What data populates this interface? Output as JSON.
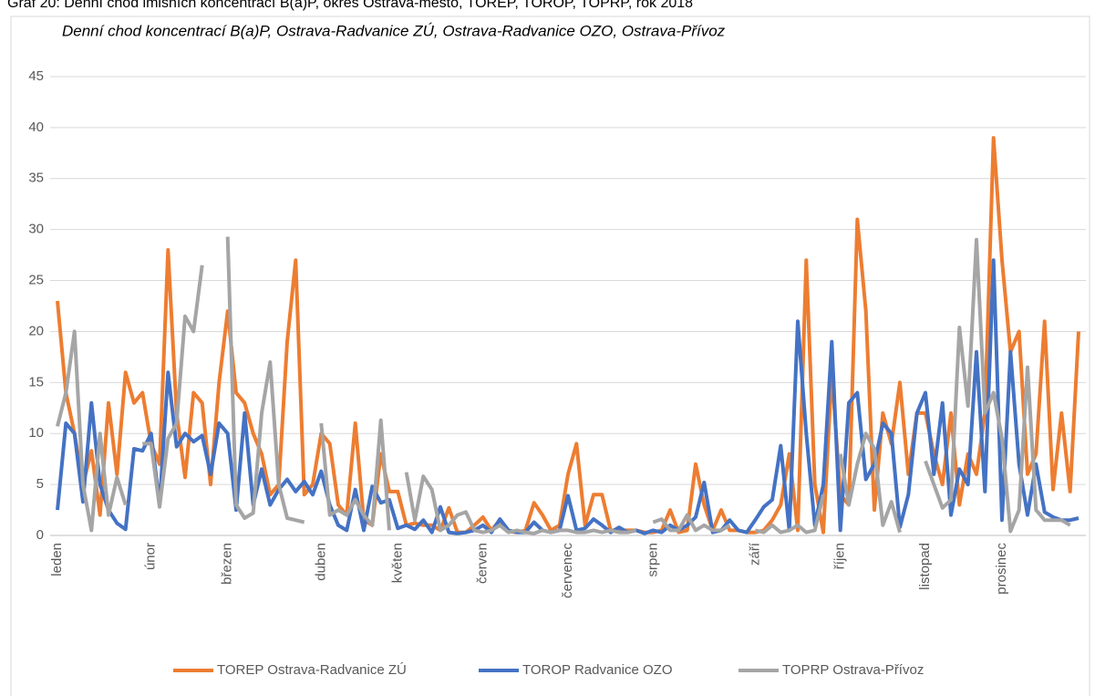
{
  "page_title": "Graf 20: Denní chod imisních koncentrací B(a)P, okres Ostrava-město, TOREP, TOROP, TOPRP, rok 2018",
  "chart_data": {
    "type": "line",
    "title": "Denní chod koncentrací B(a)P, Ostrava-Radvanice ZÚ, Ostrava-Radvanice OZO, Ostrava-Přívoz",
    "categories": [
      "leden",
      null,
      null,
      null,
      null,
      null,
      null,
      null,
      null,
      null,
      null,
      "únor",
      null,
      null,
      null,
      null,
      null,
      null,
      null,
      null,
      "březen",
      null,
      null,
      null,
      null,
      null,
      null,
      null,
      null,
      null,
      null,
      "duben",
      null,
      null,
      null,
      null,
      null,
      null,
      null,
      null,
      "květen",
      null,
      null,
      null,
      null,
      null,
      null,
      null,
      null,
      null,
      "červen",
      null,
      null,
      null,
      null,
      null,
      null,
      null,
      null,
      null,
      "červenec",
      null,
      null,
      null,
      null,
      null,
      null,
      null,
      null,
      null,
      "srpen",
      null,
      null,
      null,
      null,
      null,
      null,
      null,
      null,
      null,
      null,
      null,
      "září",
      null,
      null,
      null,
      null,
      null,
      null,
      null,
      null,
      null,
      "říjen",
      null,
      null,
      null,
      null,
      null,
      null,
      null,
      null,
      null,
      "listopad",
      null,
      null,
      null,
      null,
      null,
      null,
      null,
      null,
      "prosinec",
      null,
      null,
      null,
      null,
      null,
      null,
      null,
      null,
      null
    ],
    "ylim": [
      0,
      45
    ],
    "yticks": [
      0,
      5,
      10,
      15,
      20,
      25,
      30,
      35,
      40,
      45
    ],
    "grid": true,
    "legend": "bottom",
    "series": [
      {
        "name": "TOREP Ostrava-Radvanice ZÚ",
        "color": "#ed7d31",
        "values": [
          23,
          14,
          10,
          5,
          8.3,
          2,
          13,
          6,
          16,
          13,
          14,
          9,
          7,
          28,
          12,
          5.7,
          14,
          13,
          5,
          15,
          22,
          14,
          13,
          10,
          8,
          4,
          5,
          19,
          27,
          4,
          5,
          10,
          9,
          3,
          2,
          11,
          1.5,
          1,
          8,
          4.3,
          4.3,
          1,
          1.2,
          1,
          1,
          0.5,
          2.7,
          0.3,
          0.3,
          1,
          1.8,
          0.5,
          1.5,
          0.4,
          0.3,
          0.5,
          3.2,
          2,
          0.5,
          1,
          6,
          9,
          1,
          4,
          4,
          0.5,
          0.5,
          0.5,
          0.5,
          0.3,
          0.3,
          0.5,
          2.5,
          0.3,
          0.5,
          7,
          3,
          0.5,
          2.5,
          0.5,
          0.5,
          0.3,
          0.3,
          0.5,
          1.5,
          3,
          8,
          0.5,
          27,
          5,
          0.3,
          16,
          4,
          3,
          31,
          22,
          2.5,
          12,
          9,
          15,
          6,
          12,
          12,
          8,
          5,
          12,
          3,
          8,
          6,
          12,
          39,
          27,
          18,
          20,
          6,
          8,
          21,
          4.5,
          12,
          4.3,
          20
        ]
      },
      {
        "name": "TOROP Radvanice OZO",
        "color": "#4472c4",
        "values": [
          2.5,
          11,
          10,
          3.3,
          13,
          5,
          2.5,
          1.2,
          0.6,
          8.5,
          8.3,
          10,
          3,
          16,
          8.7,
          10,
          9.2,
          9.8,
          6,
          11,
          10,
          2.5,
          12,
          3,
          6.5,
          3,
          4.5,
          5.5,
          4.3,
          5.3,
          4,
          6.3,
          3,
          1,
          0.5,
          4.5,
          0.5,
          4.8,
          3.2,
          3.5,
          0.7,
          1,
          0.6,
          1.5,
          0.3,
          2.8,
          0.3,
          0.2,
          0.3,
          0.5,
          1,
          0.3,
          1.6,
          0.5,
          0.3,
          0.3,
          1.3,
          0.5,
          0.3,
          0.5,
          3.9,
          0.5,
          0.7,
          1.6,
          1,
          0.3,
          0.8,
          0.3,
          0.5,
          0.2,
          0.5,
          0.3,
          1,
          0.5,
          1,
          1.8,
          5.2,
          0.3,
          0.5,
          1.5,
          0.5,
          0.3,
          1.5,
          2.8,
          3.5,
          8.8,
          0.5,
          21,
          10,
          1,
          5,
          19,
          0.5,
          13,
          14,
          5.5,
          7,
          11,
          10,
          0.8,
          4,
          12,
          14,
          6,
          13,
          2,
          6.5,
          5,
          18,
          4.3,
          27,
          1.5,
          18,
          7,
          2,
          7,
          2.3,
          1.8,
          1.5,
          1.5,
          1.7
        ]
      },
      {
        "name": "TOPRP Ostrava-Přívoz",
        "color": "#a5a5a5",
        "values": [
          10.7,
          14,
          20,
          5,
          0.5,
          10,
          2,
          5.7,
          3,
          null,
          9,
          9,
          2.8,
          9.5,
          11,
          21.5,
          20,
          26.5,
          null,
          null,
          29.3,
          3,
          1.7,
          2.2,
          12,
          17,
          5,
          1.7,
          1.5,
          1.3,
          null,
          11,
          2,
          2.5,
          2,
          3.5,
          2,
          1,
          11.3,
          0.5,
          null,
          6.2,
          1.5,
          5.8,
          4.5,
          0.5,
          1,
          2,
          2.3,
          0.5,
          0.3,
          0.5,
          1,
          0.3,
          0.5,
          0.3,
          0.2,
          0.5,
          0.3,
          0.5,
          0.5,
          0.3,
          0.3,
          0.5,
          0.3,
          0.5,
          0.3,
          0.3,
          0.5,
          null,
          1.3,
          1.6,
          0.5,
          0.5,
          2,
          0.5,
          1,
          0.5,
          0.5,
          1,
          null,
          null,
          0.5,
          0.3,
          1,
          0.3,
          0.5,
          1,
          0.3,
          0.5,
          4,
          null,
          8,
          3,
          7,
          10,
          8.5,
          1,
          3.3,
          0.3,
          null,
          null,
          7.3,
          5,
          2.7,
          3.5,
          20.4,
          12.7,
          29,
          12,
          14,
          9.5,
          0.4,
          2.5,
          16.5,
          2.5,
          1.5,
          1.5,
          1.5,
          1,
          null
        ]
      }
    ]
  }
}
